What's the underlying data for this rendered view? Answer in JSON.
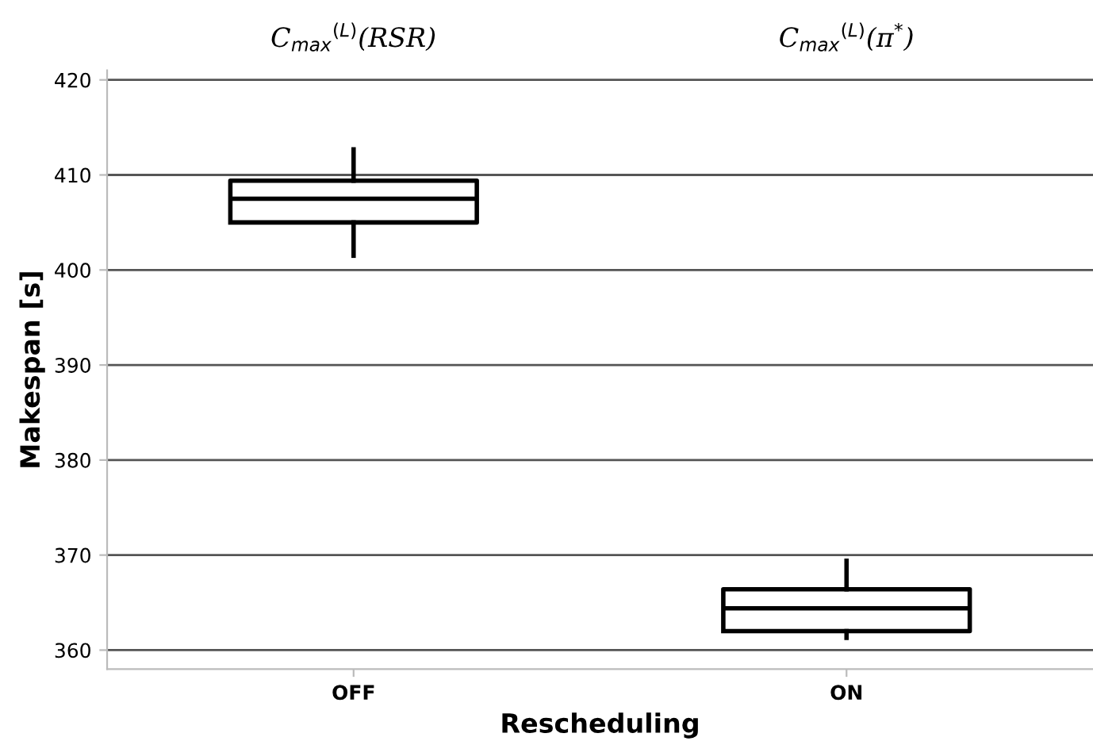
{
  "chart_data": {
    "type": "box",
    "xlabel": "Rescheduling",
    "ylabel": "Makespan [s]",
    "categories": [
      "OFF",
      "ON"
    ],
    "boxes": [
      {
        "low": 401.5,
        "q1": 405,
        "median": 407.5,
        "q3": 409.4,
        "high": 412.7
      },
      {
        "low": 361.3,
        "q1": 362,
        "median": 364.4,
        "q3": 366.4,
        "high": 369.4
      }
    ],
    "annotations": [
      "C$_{max}$$^{(L)}$(RSR)",
      "C$_{max}$$^{(L)}$(π$^{*}$)"
    ],
    "ylim": [
      358,
      421
    ],
    "yticks": [
      360,
      370,
      380,
      390,
      400,
      410,
      420
    ],
    "grid": "y"
  }
}
